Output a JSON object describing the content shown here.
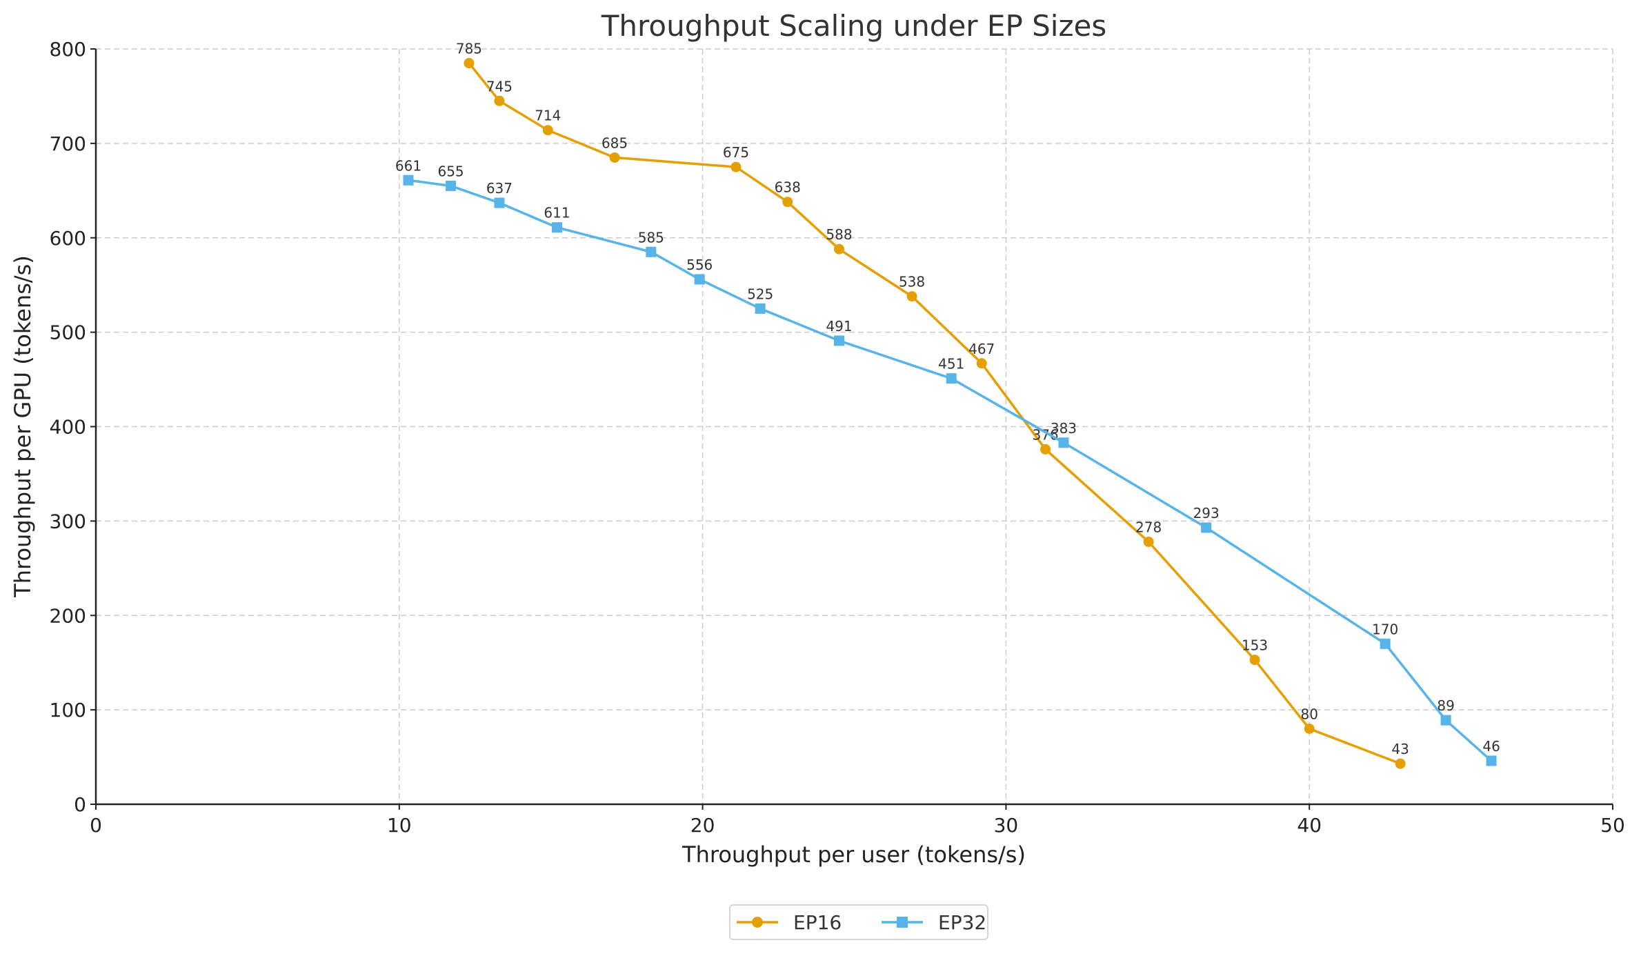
{
  "chart_data": {
    "type": "line",
    "title": "Throughput Scaling under EP Sizes",
    "xlabel": "Throughput per user (tokens/s)",
    "ylabel": "Throughput per GPU (tokens/s)",
    "xlim": [
      0,
      50
    ],
    "ylim": [
      0,
      800
    ],
    "xticks": [
      0,
      10,
      20,
      30,
      40,
      50
    ],
    "yticks": [
      0,
      100,
      200,
      300,
      400,
      500,
      600,
      700,
      800
    ],
    "grid": true,
    "legend_position": "bottom-center",
    "series": [
      {
        "name": "EP16",
        "color": "#E69F00",
        "marker": "circle",
        "x": [
          12.3,
          13.3,
          14.9,
          17.1,
          21.1,
          22.8,
          24.5,
          26.9,
          29.2,
          31.3,
          34.7,
          38.2,
          40.0,
          43.0
        ],
        "y": [
          785,
          745,
          714,
          685,
          675,
          638,
          588,
          538,
          467,
          376,
          278,
          153,
          80,
          43
        ]
      },
      {
        "name": "EP32",
        "color": "#56B4E9",
        "marker": "square",
        "x": [
          10.3,
          11.7,
          13.3,
          15.2,
          18.3,
          19.9,
          21.9,
          24.5,
          28.2,
          31.9,
          36.6,
          42.5,
          44.5,
          46.0
        ],
        "y": [
          661,
          655,
          637,
          611,
          585,
          556,
          525,
          491,
          451,
          383,
          293,
          170,
          89,
          46
        ]
      }
    ]
  }
}
